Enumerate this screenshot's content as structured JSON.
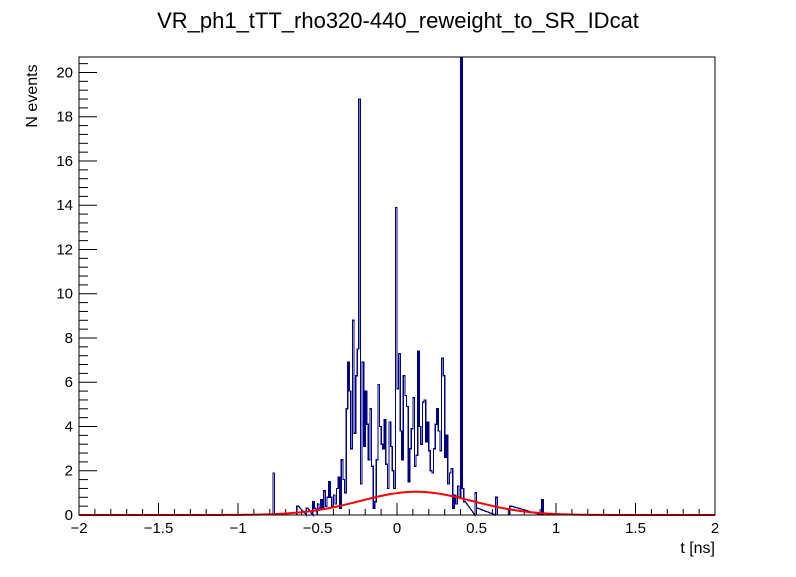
{
  "chart_data": {
    "type": "histogram",
    "title": "VR_ph1_tTT_rho320-440_reweight_to_SR_IDcat",
    "xlabel": "t [ns]",
    "ylabel": "N events",
    "xlim": [
      -2,
      2
    ],
    "ylim": [
      0,
      20.7
    ],
    "x_ticks": [
      -2,
      -1.5,
      -1,
      -0.5,
      0,
      0.5,
      1,
      1.5,
      2
    ],
    "x_tick_labels": [
      "−2",
      "−1.5",
      "−1",
      "−0.5",
      "0",
      "0.5",
      "1",
      "1.5",
      "2"
    ],
    "y_ticks": [
      0,
      2,
      4,
      6,
      8,
      10,
      12,
      14,
      16,
      18,
      20
    ],
    "y_tick_labels": [
      "0",
      "2",
      "4",
      "6",
      "8",
      "10",
      "12",
      "14",
      "16",
      "18",
      "20"
    ],
    "grid": false,
    "bin_width": 0.01,
    "series": [
      {
        "kind": "histogram",
        "color": "#000080",
        "bins": [
          [
            -0.78,
            1.9
          ],
          [
            -0.77,
            0.0
          ],
          [
            -0.63,
            0.4
          ],
          [
            -0.57,
            0.3
          ],
          [
            -0.53,
            0.6
          ],
          [
            -0.52,
            0.3
          ],
          [
            -0.5,
            0.5
          ],
          [
            -0.49,
            0.3
          ],
          [
            -0.48,
            0.7
          ],
          [
            -0.47,
            0.3
          ],
          [
            -0.46,
            1.1
          ],
          [
            -0.45,
            0.4
          ],
          [
            -0.44,
            0.8
          ],
          [
            -0.43,
            1.5
          ],
          [
            -0.42,
            0.8
          ],
          [
            -0.41,
            0.4
          ],
          [
            -0.4,
            0.9
          ],
          [
            -0.39,
            0.5
          ],
          [
            -0.38,
            1.2
          ],
          [
            -0.37,
            1.7
          ],
          [
            -0.36,
            0.3
          ],
          [
            -0.35,
            2.5
          ],
          [
            -0.34,
            1.6
          ],
          [
            -0.33,
            1.0
          ],
          [
            -0.32,
            4.8
          ],
          [
            -0.31,
            6.9
          ],
          [
            -0.3,
            5.6
          ],
          [
            -0.29,
            3.0
          ],
          [
            -0.28,
            8.8
          ],
          [
            -0.27,
            3.7
          ],
          [
            -0.26,
            6.3
          ],
          [
            -0.25,
            7.5
          ],
          [
            -0.24,
            18.8
          ],
          [
            -0.23,
            1.4
          ],
          [
            -0.22,
            6.9
          ],
          [
            -0.21,
            3.1
          ],
          [
            -0.2,
            5.6
          ],
          [
            -0.19,
            4.1
          ],
          [
            -0.18,
            2.5
          ],
          [
            -0.17,
            4.8
          ],
          [
            -0.16,
            2.2
          ],
          [
            -0.15,
            0.3
          ],
          [
            -0.14,
            0.6
          ],
          [
            -0.13,
            2.5
          ],
          [
            -0.12,
            5.9
          ],
          [
            -0.11,
            4.0
          ],
          [
            -0.1,
            3.2
          ],
          [
            -0.09,
            3.0
          ],
          [
            -0.08,
            4.3
          ],
          [
            -0.07,
            2.3
          ],
          [
            -0.06,
            1.2
          ],
          [
            -0.05,
            4.2
          ],
          [
            -0.04,
            3.1
          ],
          [
            -0.03,
            2.0
          ],
          [
            -0.02,
            1.2
          ],
          [
            -0.01,
            13.9
          ],
          [
            0.0,
            5.7
          ],
          [
            0.01,
            7.3
          ],
          [
            0.02,
            3.8
          ],
          [
            0.03,
            2.5
          ],
          [
            0.04,
            6.3
          ],
          [
            0.05,
            5.4
          ],
          [
            0.06,
            4.9
          ],
          [
            0.07,
            1.5
          ],
          [
            0.08,
            3.0
          ],
          [
            0.09,
            3.9
          ],
          [
            0.1,
            5.3
          ],
          [
            0.11,
            2.2
          ],
          [
            0.12,
            2.7
          ],
          [
            0.13,
            7.4
          ],
          [
            0.14,
            4.0
          ],
          [
            0.15,
            3.2
          ],
          [
            0.16,
            5.1
          ],
          [
            0.17,
            5.2
          ],
          [
            0.18,
            3.3
          ],
          [
            0.19,
            4.2
          ],
          [
            0.2,
            2.9
          ],
          [
            0.21,
            2.0
          ],
          [
            0.22,
            1.9
          ],
          [
            0.23,
            3.0
          ],
          [
            0.24,
            4.1
          ],
          [
            0.25,
            4.8
          ],
          [
            0.26,
            3.8
          ],
          [
            0.27,
            2.9
          ],
          [
            0.28,
            7.1
          ],
          [
            0.29,
            6.3
          ],
          [
            0.3,
            2.6
          ],
          [
            0.31,
            3.6
          ],
          [
            0.32,
            1.4
          ],
          [
            0.33,
            1.9
          ],
          [
            0.34,
            2.1
          ],
          [
            0.35,
            0.3
          ],
          [
            0.36,
            0.9
          ],
          [
            0.37,
            0.5
          ],
          [
            0.38,
            1.3
          ],
          [
            0.39,
            0.8
          ],
          [
            0.4,
            20.7
          ],
          [
            0.41,
            1.2
          ],
          [
            0.42,
            0.6
          ],
          [
            0.49,
            1.0
          ],
          [
            0.5,
            0.3
          ],
          [
            0.62,
            0.8
          ],
          [
            0.63,
            0.0
          ],
          [
            0.71,
            0.4
          ],
          [
            0.91,
            0.7
          ]
        ]
      },
      {
        "kind": "curve",
        "color": "#ff0000",
        "function": "gaussian",
        "amplitude": 1.05,
        "mean": 0.12,
        "sigma": 0.35
      }
    ]
  }
}
